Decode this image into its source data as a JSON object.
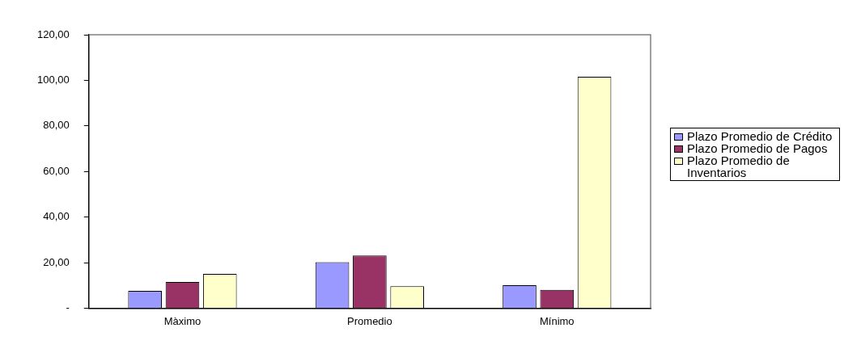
{
  "chart_data": {
    "type": "bar",
    "categories": [
      "Màximo",
      "Promedio",
      "Mínimo"
    ],
    "series": [
      {
        "name": "Plazo Promedio de Crédito",
        "color": "#9999ff",
        "values": [
          7.6,
          20.2,
          10.1
        ]
      },
      {
        "name": "Plazo Promedio de Pagos",
        "color": "#993366",
        "values": [
          11.5,
          23.1,
          8.0
        ]
      },
      {
        "name": "Plazo Promedio de Inventarios",
        "color": "#ffffcc",
        "values": [
          15.0,
          9.6,
          101.6
        ]
      }
    ],
    "ylim": [
      0,
      120
    ],
    "yticks": [
      {
        "value": 0,
        "label": "-"
      },
      {
        "value": 20,
        "label": "20,00"
      },
      {
        "value": 40,
        "label": "40,00"
      },
      {
        "value": 60,
        "label": "60,00"
      },
      {
        "value": 80,
        "label": "80,00"
      },
      {
        "value": 100,
        "label": "100,00"
      },
      {
        "value": 120,
        "label": "120,00"
      }
    ],
    "grid": false,
    "legend": "right"
  }
}
